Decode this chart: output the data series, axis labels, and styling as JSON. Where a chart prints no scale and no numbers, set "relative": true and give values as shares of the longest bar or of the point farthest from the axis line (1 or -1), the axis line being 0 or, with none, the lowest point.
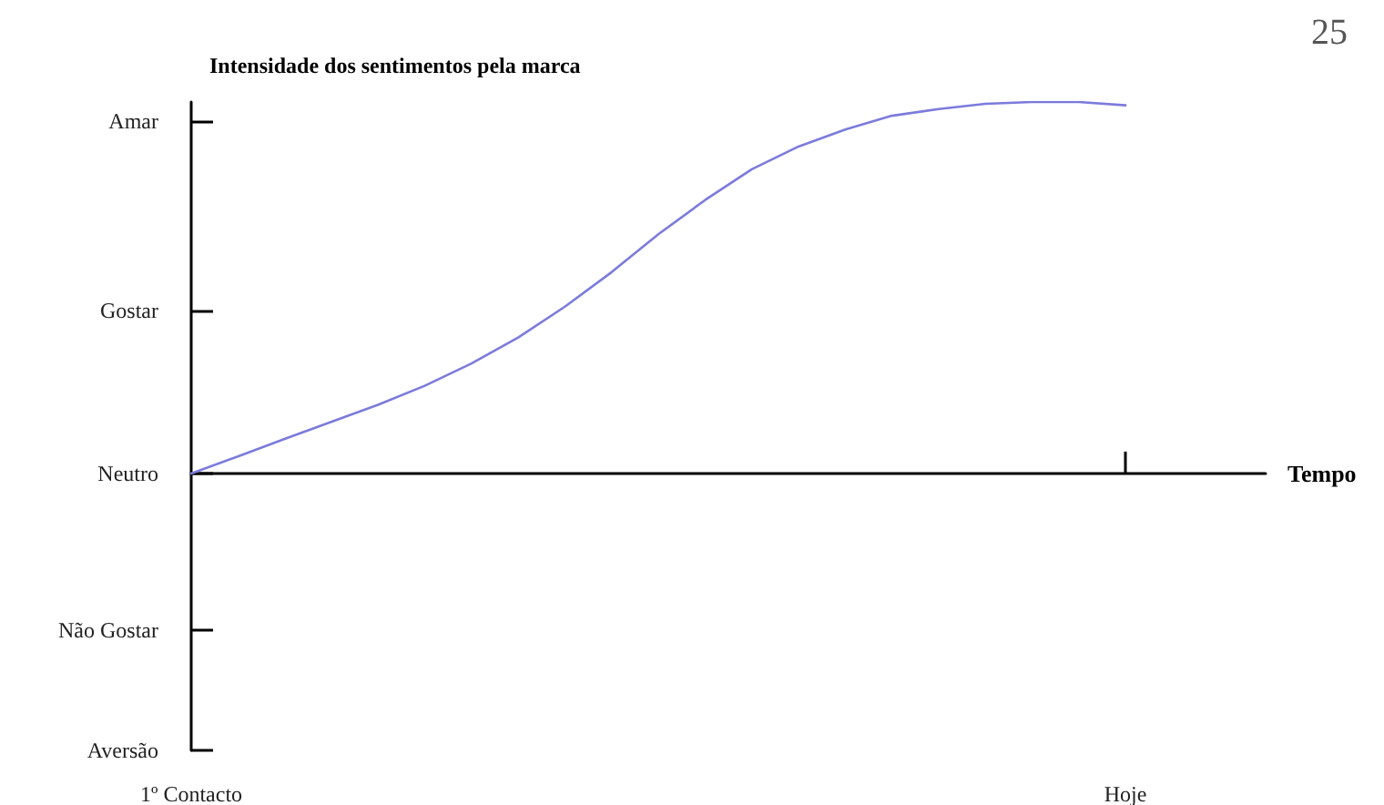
{
  "chart_data": {
    "type": "line",
    "relative": true,
    "ylabel": "Intensidade dos sentimentos pela marca",
    "xlabel": "Tempo",
    "categories": [
      "1º Contacto",
      null,
      null,
      null,
      null,
      null,
      null,
      null,
      null,
      null,
      null,
      null,
      null,
      null,
      null,
      null,
      null,
      null,
      null,
      null,
      "Hoje",
      null,
      null,
      null
    ],
    "series": [
      {
        "color": "#7b7bdc",
        "values": [
          0,
          0.046,
          0.093,
          0.139,
          0.185,
          0.236,
          0.296,
          0.366,
          0.449,
          0.542,
          0.644,
          0.736,
          0.819,
          0.88,
          0.926,
          0.963,
          0.981,
          0.995,
          1,
          1,
          0.991,
          null,
          null,
          null
        ]
      }
    ],
    "annotations": [
      "Amar",
      "Gostar",
      "Neutro",
      "Não Gostar",
      "Aversão",
      "25"
    ],
    "grid": false,
    "marker": "none",
    "line_style": "solid"
  }
}
